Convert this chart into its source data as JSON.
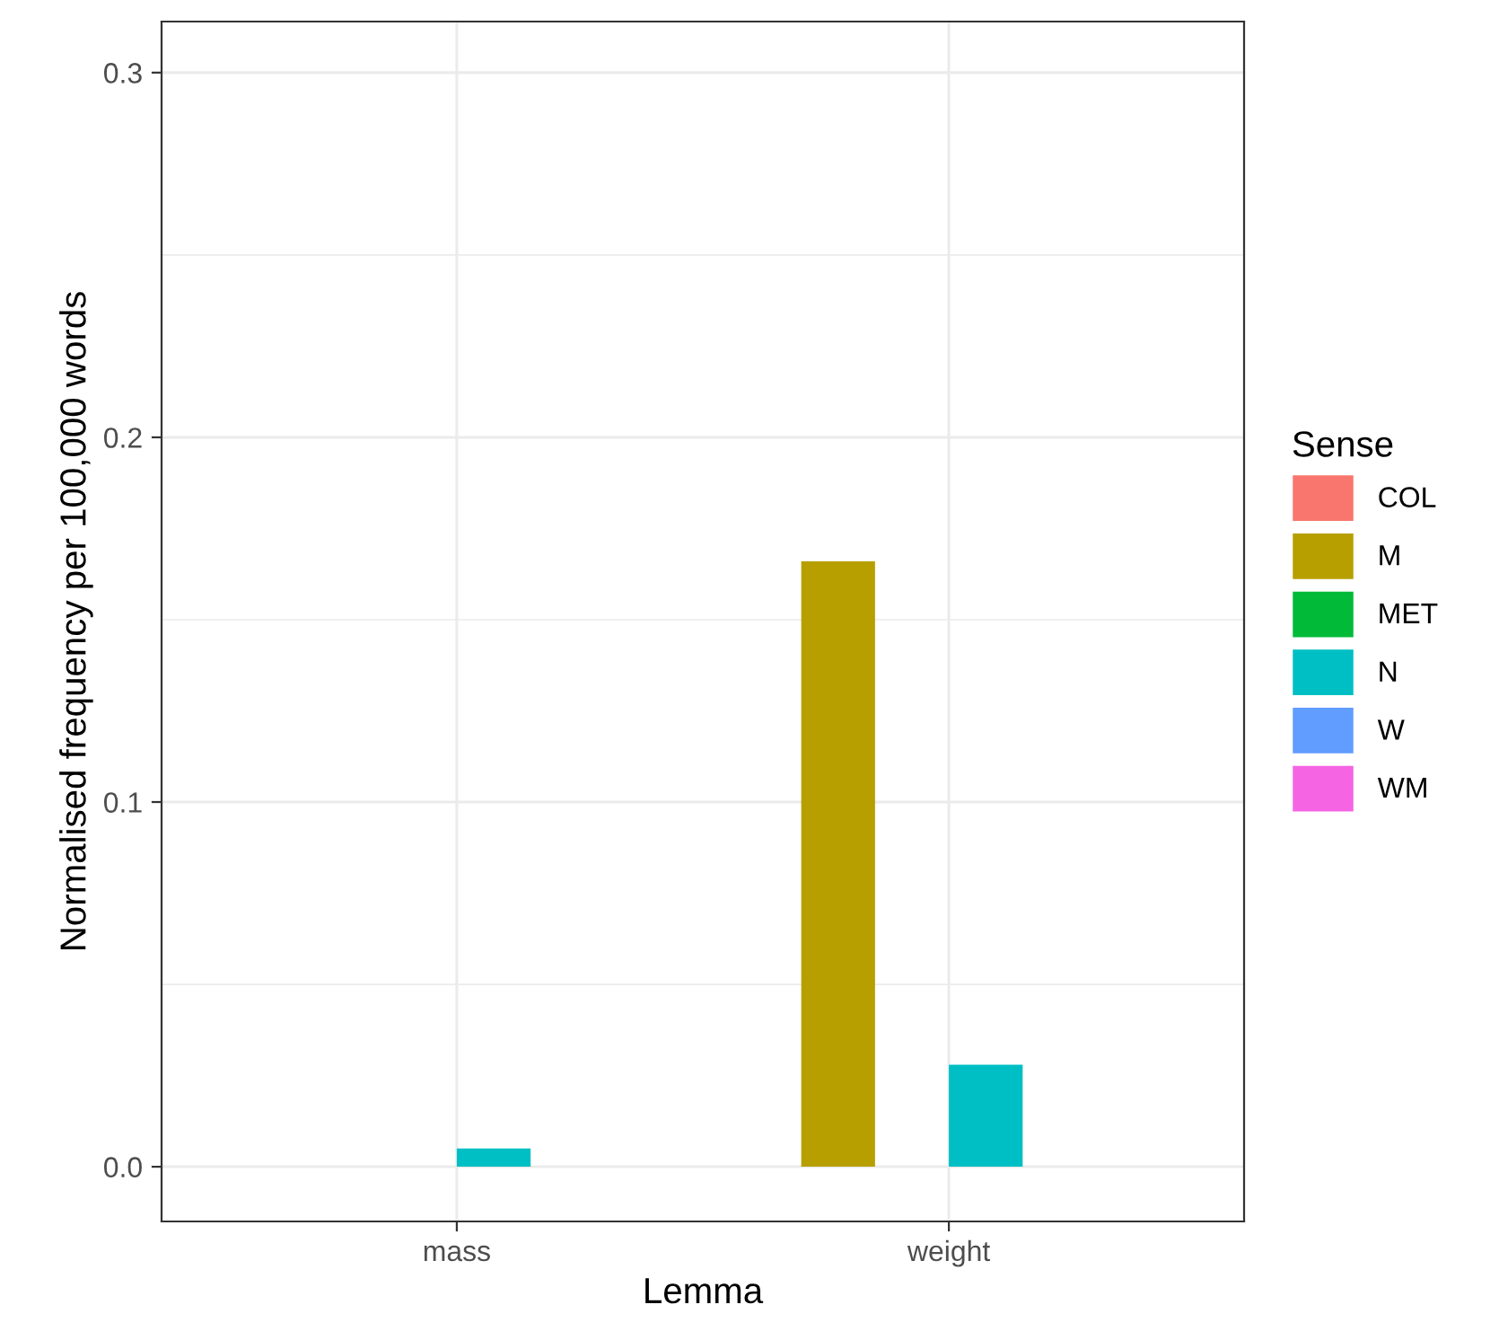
{
  "chart_data": {
    "type": "bar",
    "xlabel": "Lemma",
    "ylabel": "Normalised frequency per 100,000 words",
    "legend_title": "Sense",
    "categories": [
      "mass",
      "weight"
    ],
    "series": [
      {
        "name": "COL",
        "color": "#f8766d",
        "values": [
          null,
          null
        ]
      },
      {
        "name": "M",
        "color": "#b79f00",
        "values": [
          null,
          0.166
        ]
      },
      {
        "name": "MET",
        "color": "#00ba38",
        "values": [
          null,
          null
        ]
      },
      {
        "name": "N",
        "color": "#00bfc4",
        "values": [
          0.005,
          0.028
        ]
      },
      {
        "name": "W",
        "color": "#619cff",
        "values": [
          null,
          null
        ]
      },
      {
        "name": "WM",
        "color": "#f564e3",
        "values": [
          null,
          null
        ]
      }
    ],
    "ylim": [
      -0.015,
      0.314
    ],
    "yticks": [
      {
        "value": 0,
        "label": "0.0"
      },
      0.1,
      0.2,
      0.3
    ],
    "grid": true,
    "legend": "right"
  }
}
